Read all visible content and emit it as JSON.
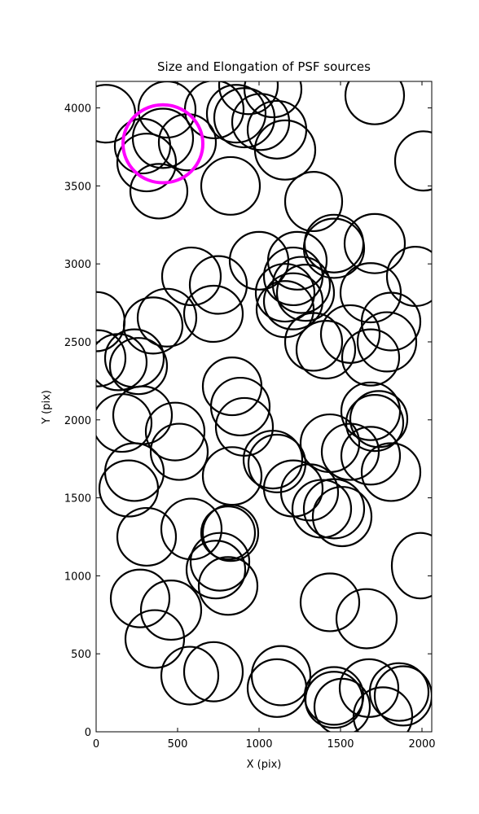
{
  "chart_data": {
    "type": "ellipse",
    "title": "Size and Elongation of PSF sources",
    "xlabel": "X (pix)",
    "ylabel": "Y (pix)",
    "xlim": [
      0,
      2060
    ],
    "ylim": [
      0,
      4170
    ],
    "xticks": [
      0,
      500,
      1000,
      1500,
      2000
    ],
    "yticks": [
      0,
      500,
      1000,
      1500,
      2000,
      2500,
      3000,
      3500,
      4000
    ],
    "series": [
      {
        "color": "#000000",
        "x": [
          60,
          435,
          285,
          310,
          410,
          560,
          385,
          725,
          860,
          910,
          1010,
          935,
          1085,
          1110,
          1160,
          825,
          1710,
          2010,
          1335,
          1460,
          1460,
          1710,
          1960,
          1000,
          1235,
          1260,
          1210,
          1285,
          1210,
          1160,
          1160,
          1685,
          1810,
          1785,
          1685,
          1560,
          1335,
          1410,
          585,
          750,
          720,
          435,
          350,
          0,
          10,
          135,
          235,
          260,
          835,
          885,
          910,
          160,
          285,
          485,
          510,
          235,
          200,
          310,
          585,
          835,
          1085,
          1110,
          1210,
          1310,
          1435,
          1560,
          1685,
          1710,
          1685,
          1735,
          1810,
          1460,
          1510,
          1385,
          810,
          760,
          810,
          735,
          270,
          460,
          360,
          575,
          720,
          1135,
          1110,
          1460,
          1460,
          1510,
          1675,
          1760,
          1860,
          1885,
          1990,
          1435,
          1660,
          825
        ],
        "y": [
          3963,
          3990,
          3755,
          3650,
          3805,
          3780,
          3466,
          3990,
          3963,
          3937,
          3910,
          4145,
          4120,
          3860,
          3730,
          3500,
          4080,
          3660,
          3400,
          3130,
          3100,
          3130,
          2920,
          3020,
          3020,
          2865,
          2920,
          2815,
          2760,
          2815,
          2710,
          2815,
          2630,
          2500,
          2400,
          2550,
          2500,
          2450,
          2920,
          2865,
          2680,
          2655,
          2605,
          2630,
          2395,
          2370,
          2395,
          2345,
          2215,
          2085,
          1955,
          1980,
          2030,
          1925,
          1795,
          1665,
          1560,
          1250,
          1300,
          1640,
          1745,
          1720,
          1560,
          1535,
          1850,
          1795,
          1770,
          1980,
          2055,
          2005,
          1665,
          1430,
          1380,
          1430,
          1275,
          1090,
          935,
          1040,
          855,
          780,
          595,
          360,
          385,
          360,
          280,
          230,
          205,
          160,
          280,
          100,
          255,
          230,
          1065,
          830,
          725,
          1275
        ],
        "width": [
          360,
          350,
          340,
          360,
          370,
          350,
          350,
          360,
          360,
          370,
          350,
          360,
          350,
          360,
          370,
          360,
          360,
          350,
          350,
          360,
          370,
          370,
          350,
          360,
          360,
          350,
          360,
          350,
          360,
          360,
          350,
          370,
          360,
          360,
          350,
          360,
          350,
          360,
          360,
          350,
          360,
          360,
          360,
          350,
          340,
          350,
          360,
          350,
          360,
          360,
          350,
          360,
          360,
          360,
          350,
          360,
          360,
          360,
          370,
          360,
          360,
          350,
          360,
          350,
          360,
          350,
          360,
          350,
          360,
          350,
          360,
          370,
          360,
          360,
          330,
          360,
          360,
          360,
          360,
          370,
          360,
          350,
          360,
          360,
          360,
          360,
          350,
          340,
          360,
          360,
          360,
          350,
          350,
          360,
          370,
          340
        ],
        "height": [
          370,
          360,
          350,
          370,
          380,
          360,
          350,
          370,
          370,
          380,
          360,
          370,
          360,
          370,
          380,
          370,
          370,
          380,
          380,
          370,
          380,
          380,
          380,
          370,
          370,
          360,
          370,
          360,
          360,
          370,
          360,
          380,
          370,
          380,
          360,
          370,
          370,
          370,
          370,
          370,
          360,
          370,
          360,
          380,
          360,
          360,
          370,
          360,
          370,
          370,
          370,
          370,
          370,
          370,
          360,
          370,
          360,
          370,
          390,
          370,
          370,
          370,
          360,
          360,
          370,
          360,
          370,
          360,
          370,
          360,
          370,
          380,
          380,
          370,
          340,
          370,
          370,
          370,
          370,
          380,
          370,
          370,
          380,
          380,
          370,
          370,
          360,
          360,
          370,
          370,
          370,
          380,
          420,
          370,
          380,
          360
        ]
      },
      {
        "color": "#ff00ff",
        "x": [
          410
        ],
        "y": [
          3770
        ],
        "width": [
          490
        ],
        "height": [
          500
        ]
      }
    ]
  }
}
